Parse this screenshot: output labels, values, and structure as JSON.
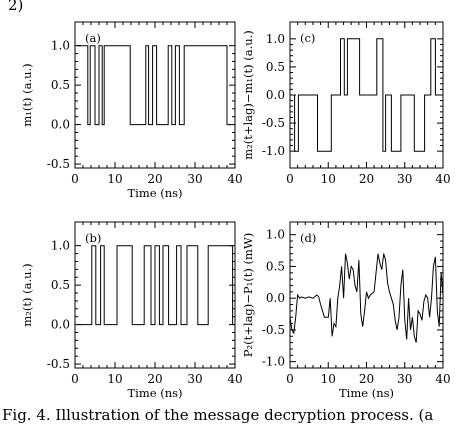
{
  "header_text": "2)        ",
  "caption": "Fig. 4.   Illustration of the message decryption process. (a",
  "chart_data": [
    {
      "type": "line",
      "panel_label": "(a)",
      "xlabel": "Time (ns)",
      "ylabel": "m₁(t) (a.u.)",
      "xlim": [
        0,
        40
      ],
      "ylim": [
        -0.55,
        1.3
      ],
      "xticks": [
        "0",
        "10",
        "20",
        "30",
        "40"
      ],
      "yticks": [
        "-0.5",
        "0.0",
        "0.5",
        "1.0"
      ],
      "ytick_values": [
        -0.5,
        0.0,
        0.5,
        1.0
      ],
      "step": true,
      "x": [
        0.5,
        3.2,
        3.2,
        3.8,
        3.8,
        5.0,
        5.0,
        6.0,
        6.0,
        6.8,
        6.8,
        7.3,
        7.3,
        13.8,
        13.8,
        17.7,
        17.7,
        18.4,
        18.4,
        19.4,
        19.4,
        20.4,
        20.4,
        23.3,
        23.3,
        24.2,
        24.2,
        25.1,
        25.1,
        26.1,
        26.1,
        27.3,
        27.3,
        38.0,
        38.0,
        39.0
      ],
      "y": [
        1,
        1,
        0,
        0,
        1,
        1,
        0,
        0,
        1,
        1,
        0,
        0,
        1,
        1,
        0,
        0,
        1,
        1,
        0,
        0,
        1,
        1,
        0,
        0,
        1,
        1,
        0,
        0,
        1,
        1,
        0,
        0,
        1,
        1,
        0,
        0
      ]
    },
    {
      "type": "line",
      "panel_label": "(c)",
      "xlabel": "",
      "ylabel": "m₂(t+lag)−m₁(t) (a.u.)",
      "xlim": [
        0,
        40
      ],
      "ylim": [
        -1.3,
        1.3
      ],
      "xticks": [
        "0",
        "10",
        "20",
        "30",
        "40"
      ],
      "yticks": [
        "-1.0",
        "-0.5",
        "0.0",
        "0.5",
        "1.0"
      ],
      "ytick_values": [
        -1.0,
        -0.5,
        0.0,
        0.5,
        1.0
      ],
      "step": true,
      "x": [
        0.5,
        1.2,
        1.2,
        2.2,
        2.2,
        3.0,
        3.0,
        7.2,
        7.2,
        10.8,
        10.8,
        13.2,
        13.2,
        14.2,
        14.2,
        15.0,
        15.0,
        18.2,
        18.2,
        22.7,
        22.7,
        24.3,
        24.3,
        25.0,
        25.0,
        26.5,
        26.5,
        29.0,
        29.0,
        32.5,
        32.5,
        35.2,
        35.2,
        36.8,
        36.8,
        38.0,
        38.0,
        39.5
      ],
      "y": [
        0,
        0,
        -1,
        -1,
        0,
        0,
        0,
        0,
        -1,
        -1,
        0,
        0,
        1,
        1,
        0,
        0,
        1,
        1,
        0,
        0,
        1,
        1,
        -1,
        -1,
        0,
        0,
        -1,
        -1,
        0,
        0,
        -1,
        -1,
        0,
        0,
        1,
        1,
        0,
        0
      ]
    },
    {
      "type": "line",
      "panel_label": "(b)",
      "xlabel": "Time (ns)",
      "ylabel": "m₂(t) (a.u.)",
      "xlim": [
        0,
        40
      ],
      "ylim": [
        -0.55,
        1.3
      ],
      "xticks": [
        "0",
        "10",
        "20",
        "30",
        "40"
      ],
      "yticks": [
        "-0.5",
        "0.0",
        "0.5",
        "1.0"
      ],
      "ytick_values": [
        -0.5,
        0.0,
        0.5,
        1.0
      ],
      "step": true,
      "x": [
        0.5,
        4.2,
        4.2,
        5.2,
        5.2,
        6.4,
        6.4,
        7.3,
        7.3,
        10.5,
        10.5,
        14.3,
        14.3,
        17.3,
        17.3,
        19.0,
        19.0,
        20.0,
        20.0,
        21.1,
        21.1,
        22.0,
        22.0,
        23.4,
        23.4,
        25.4,
        25.4,
        26.5,
        26.5,
        28.0,
        28.0,
        30.7,
        30.7,
        33.3,
        33.3,
        39.4,
        39.4,
        40.0
      ],
      "y": [
        0,
        0,
        1,
        1,
        0,
        0,
        1,
        1,
        0,
        0,
        1,
        1,
        0,
        0,
        1,
        1,
        0,
        0,
        1,
        1,
        0,
        0,
        1,
        1,
        0,
        0,
        1,
        1,
        0,
        0,
        1,
        1,
        0,
        0,
        1,
        1,
        0,
        0
      ]
    },
    {
      "type": "line",
      "panel_label": "(d)",
      "xlabel": "Time (ns)",
      "ylabel": "P₂(t+lag)−P₁(t) (mW)",
      "xlim": [
        0,
        40
      ],
      "ylim": [
        -1.1,
        1.2
      ],
      "xticks": [
        "0",
        "10",
        "20",
        "30",
        "40"
      ],
      "yticks": [
        "-1.0",
        "-0.5",
        "0.0",
        "0.5",
        "1.0"
      ],
      "ytick_values": [
        -1.0,
        -0.5,
        0.0,
        0.5,
        1.0
      ],
      "step": false,
      "x": [
        0.0,
        0.5,
        1.0,
        1.5,
        2.0,
        2.5,
        3.0,
        4.0,
        5.0,
        6.0,
        7.0,
        7.5,
        8.0,
        9.0,
        10.0,
        10.5,
        11.0,
        11.5,
        12.0,
        12.5,
        13.0,
        13.5,
        14.0,
        14.5,
        15.0,
        15.5,
        16.0,
        16.5,
        17.0,
        17.5,
        18.0,
        18.5,
        19.0,
        19.5,
        20.0,
        20.5,
        21.0,
        22.0,
        23.0,
        23.5,
        24.0,
        24.5,
        25.0,
        25.5,
        26.0,
        26.5,
        27.0,
        27.5,
        28.0,
        28.5,
        29.0,
        29.5,
        30.0,
        30.5,
        31.0,
        31.5,
        32.0,
        32.5,
        33.0,
        33.5,
        34.0,
        34.5,
        35.0,
        35.5,
        36.0,
        36.5,
        37.0,
        37.5,
        38.0,
        38.5,
        39.0,
        39.5,
        40.0
      ],
      "y": [
        -0.3,
        -0.5,
        -0.55,
        -0.3,
        0.05,
        0.0,
        0.02,
        0.0,
        0.02,
        0.0,
        0.05,
        0.02,
        -0.1,
        -0.3,
        -0.3,
        0.0,
        -0.6,
        -0.4,
        -0.45,
        0.0,
        0.2,
        0.5,
        0.0,
        0.7,
        0.55,
        0.3,
        0.5,
        0.45,
        0.2,
        0.1,
        0.6,
        -0.25,
        -0.45,
        -0.2,
        0.1,
        0.0,
        0.05,
        0.1,
        0.7,
        0.55,
        0.45,
        0.7,
        0.6,
        0.25,
        0.1,
        0.0,
        -0.1,
        -0.35,
        -0.5,
        -0.3,
        0.2,
        0.45,
        -0.35,
        -0.65,
        0.0,
        -0.5,
        -0.3,
        -0.6,
        -0.7,
        -0.2,
        -0.25,
        -0.35,
        -0.05,
        0.05,
        0.0,
        -0.3,
        0.0,
        0.5,
        0.65,
        -0.2,
        -0.45,
        0.4,
        0.05
      ]
    }
  ]
}
